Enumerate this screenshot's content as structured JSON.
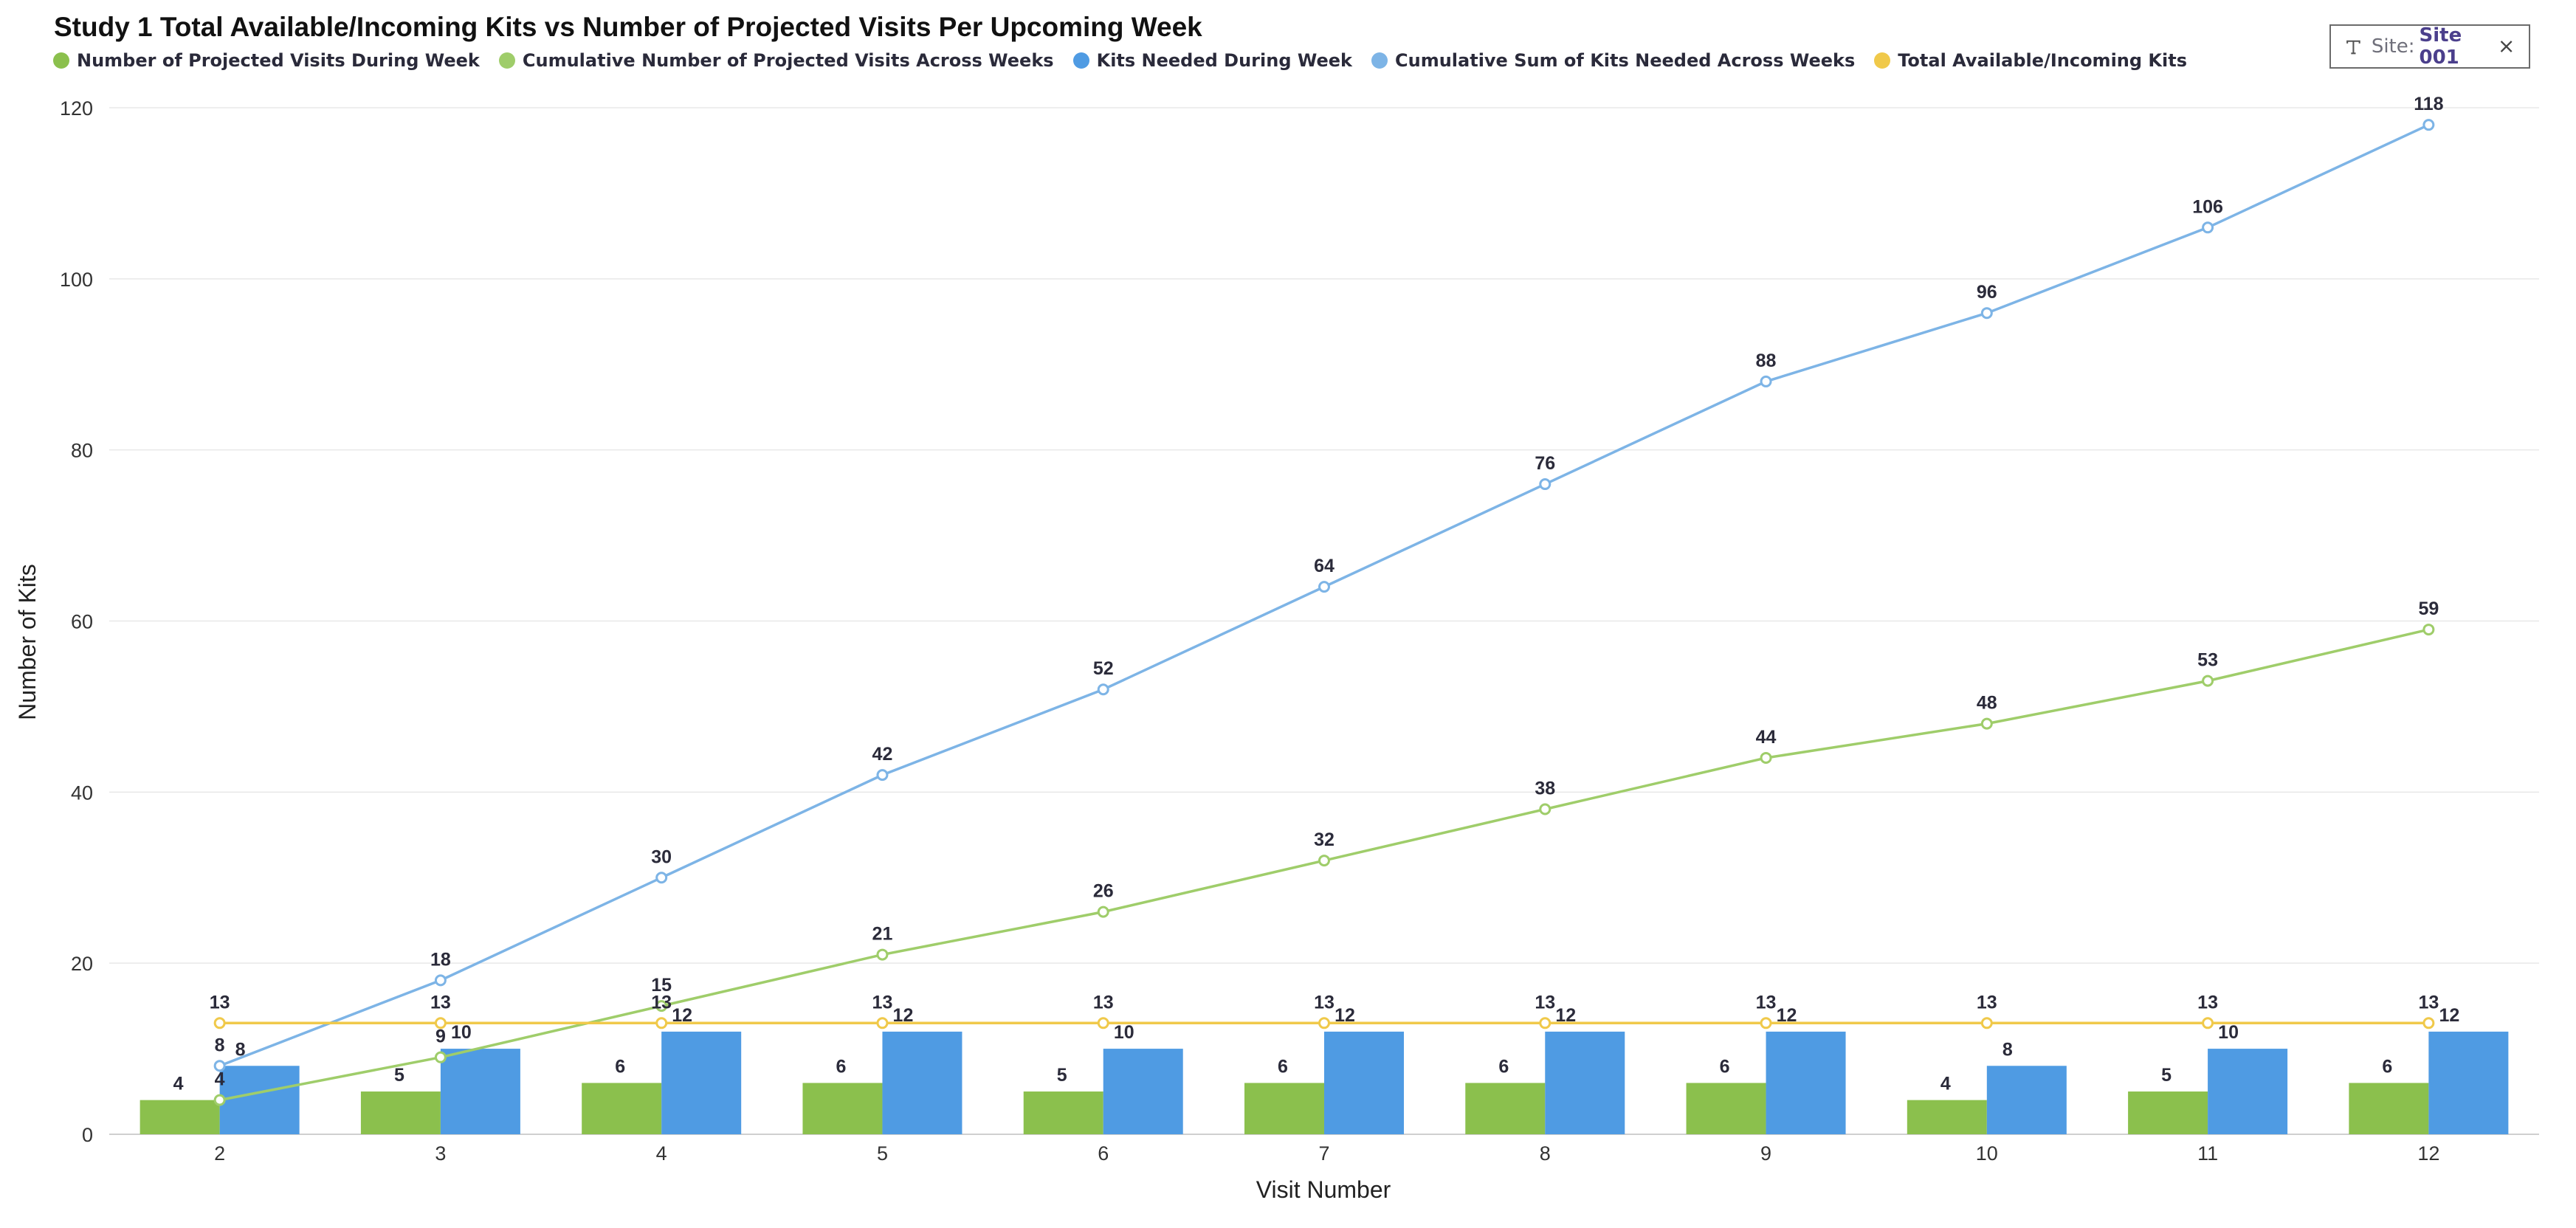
{
  "filter": {
    "label": "Site:",
    "value": "Site 001",
    "icon": "text-type-icon",
    "close_icon": "close-icon"
  },
  "colors": {
    "visits": "#8bc04d",
    "cum_visits": "#9fcd6a",
    "kits": "#4f9be3",
    "cum_kits": "#7db4e6",
    "total": "#f0c94a",
    "grid": "#e8e8e8",
    "axis_text": "#333333",
    "label_text": "#2b2b3a"
  },
  "chart_data": {
    "type": "bar",
    "title": "Study 1 Total Available/Incoming Kits vs Number of Projected Visits Per Upcoming Week",
    "xlabel": "Visit Number",
    "ylabel": "Number of Kits",
    "ylim": [
      0,
      120
    ],
    "yticks": [
      "0",
      "20",
      "40",
      "60",
      "80",
      "100",
      "120"
    ],
    "categories": [
      "2",
      "3",
      "4",
      "5",
      "6",
      "7",
      "8",
      "9",
      "10",
      "11",
      "12"
    ],
    "grid": true,
    "legend_position": "top-left",
    "series": [
      {
        "name": "Number of Projected Visits During Week",
        "kind": "bar",
        "color": "#8bc04d",
        "values": [
          4,
          5,
          6,
          6,
          5,
          6,
          6,
          6,
          4,
          5,
          6
        ]
      },
      {
        "name": "Cumulative Number of Projected Visits Across Weeks",
        "kind": "line",
        "color": "#9fcd6a",
        "values": [
          4,
          9,
          15,
          21,
          26,
          32,
          38,
          44,
          48,
          53,
          59
        ]
      },
      {
        "name": "Kits Needed During Week",
        "kind": "bar",
        "color": "#4f9be3",
        "values": [
          8,
          10,
          12,
          12,
          10,
          12,
          12,
          12,
          8,
          10,
          12
        ]
      },
      {
        "name": "Cumulative Sum of Kits Needed Across Weeks",
        "kind": "line",
        "color": "#7db4e6",
        "values": [
          8,
          18,
          30,
          42,
          52,
          64,
          76,
          88,
          96,
          106,
          118
        ]
      },
      {
        "name": "Total Available/Incoming Kits",
        "kind": "line",
        "color": "#f0c94a",
        "values": [
          13,
          13,
          13,
          13,
          13,
          13,
          13,
          13,
          13,
          13,
          13
        ]
      }
    ]
  }
}
